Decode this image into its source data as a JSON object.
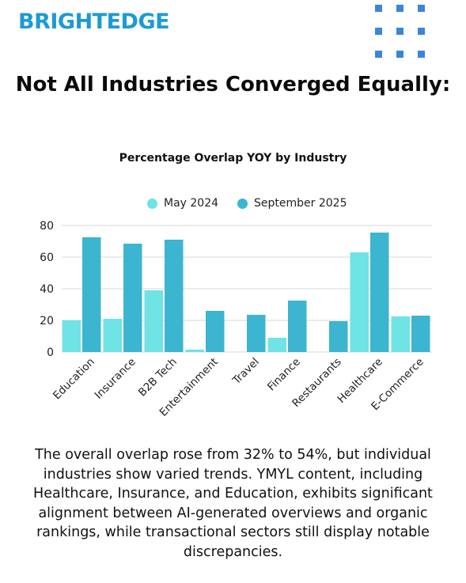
{
  "brand": {
    "logo_text": "BRIGHTEDGE",
    "color": "#1d9ad6",
    "dot_color": "#3a86d8"
  },
  "headline": "Not All Industries Converged Equally:",
  "description": "The overall overlap rose from 32% to 54%, but individual industries show varied trends. YMYL content, including Healthcare, Insurance, and Education, exhibits significant alignment between AI-generated overviews and organic rankings, while transactional sectors still display notable discrepancies.",
  "chart_data": {
    "type": "bar",
    "title": "Percentage Overlap YOY by Industry",
    "categories": [
      "Education",
      "Insurance",
      "B2B Tech",
      "Entertainment",
      "Travel",
      "Finance",
      "Restaurants",
      "Healthcare",
      "E-Commerce"
    ],
    "series": [
      {
        "name": "May 2024",
        "color": "#6fe3e6",
        "values": [
          20,
          21,
          39,
          1.5,
          0,
          9,
          0,
          63,
          22.5
        ]
      },
      {
        "name": "September 2025",
        "color": "#3bb5d0",
        "values": [
          72.5,
          68.5,
          71,
          26,
          23.5,
          32.5,
          19.5,
          75.5,
          23
        ]
      }
    ],
    "yticks": [
      0,
      20,
      40,
      60,
      80
    ],
    "ylim": [
      0,
      80
    ],
    "grid": true,
    "legend_position": "top"
  }
}
